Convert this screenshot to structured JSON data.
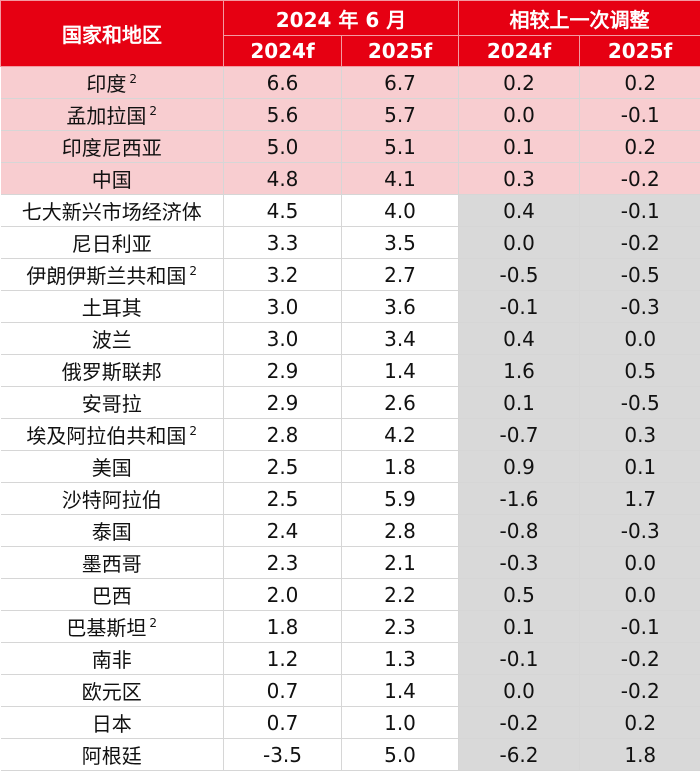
{
  "header": {
    "country_label": "国家和地区",
    "group_forecast": "2024 年 6 月",
    "group_revision": "相较上一次调整",
    "sub_2024": "2024f",
    "sub_2025": "2025f"
  },
  "rows": [
    {
      "name": "印度",
      "note": "2",
      "f2024": "6.6",
      "f2025": "6.7",
      "c2024": "0.2",
      "c2025": "0.2",
      "highlight": true
    },
    {
      "name": "孟加拉国",
      "note": "2",
      "f2024": "5.6",
      "f2025": "5.7",
      "c2024": "0.0",
      "c2025": "-0.1",
      "highlight": true
    },
    {
      "name": "印度尼西亚",
      "note": "",
      "f2024": "5.0",
      "f2025": "5.1",
      "c2024": "0.1",
      "c2025": "0.2",
      "highlight": true
    },
    {
      "name": "中国",
      "note": "",
      "f2024": "4.8",
      "f2025": "4.1",
      "c2024": "0.3",
      "c2025": "-0.2",
      "highlight": true
    },
    {
      "name": "七大新兴市场经济体",
      "note": "",
      "f2024": "4.5",
      "f2025": "4.0",
      "c2024": "0.4",
      "c2025": "-0.1",
      "highlight": false
    },
    {
      "name": "尼日利亚",
      "note": "",
      "f2024": "3.3",
      "f2025": "3.5",
      "c2024": "0.0",
      "c2025": "-0.2",
      "highlight": false
    },
    {
      "name": "伊朗伊斯兰共和国",
      "note": "2",
      "f2024": "3.2",
      "f2025": "2.7",
      "c2024": "-0.5",
      "c2025": "-0.5",
      "highlight": false
    },
    {
      "name": "土耳其",
      "note": "",
      "f2024": "3.0",
      "f2025": "3.6",
      "c2024": "-0.1",
      "c2025": "-0.3",
      "highlight": false
    },
    {
      "name": "波兰",
      "note": "",
      "f2024": "3.0",
      "f2025": "3.4",
      "c2024": "0.4",
      "c2025": "0.0",
      "highlight": false
    },
    {
      "name": "俄罗斯联邦",
      "note": "",
      "f2024": "2.9",
      "f2025": "1.4",
      "c2024": "1.6",
      "c2025": "0.5",
      "highlight": false
    },
    {
      "name": "安哥拉",
      "note": "",
      "f2024": "2.9",
      "f2025": "2.6",
      "c2024": "0.1",
      "c2025": "-0.5",
      "highlight": false
    },
    {
      "name": "埃及阿拉伯共和国",
      "note": "2",
      "f2024": "2.8",
      "f2025": "4.2",
      "c2024": "-0.7",
      "c2025": "0.3",
      "highlight": false
    },
    {
      "name": "美国",
      "note": "",
      "f2024": "2.5",
      "f2025": "1.8",
      "c2024": "0.9",
      "c2025": "0.1",
      "highlight": false
    },
    {
      "name": "沙特阿拉伯",
      "note": "",
      "f2024": "2.5",
      "f2025": "5.9",
      "c2024": "-1.6",
      "c2025": "1.7",
      "highlight": false
    },
    {
      "name": "泰国",
      "note": "",
      "f2024": "2.4",
      "f2025": "2.8",
      "c2024": "-0.8",
      "c2025": "-0.3",
      "highlight": false
    },
    {
      "name": "墨西哥",
      "note": "",
      "f2024": "2.3",
      "f2025": "2.1",
      "c2024": "-0.3",
      "c2025": "0.0",
      "highlight": false
    },
    {
      "name": "巴西",
      "note": "",
      "f2024": "2.0",
      "f2025": "2.2",
      "c2024": "0.5",
      "c2025": "0.0",
      "highlight": false
    },
    {
      "name": "巴基斯坦",
      "note": "2",
      "f2024": "1.8",
      "f2025": "2.3",
      "c2024": "0.1",
      "c2025": "-0.1",
      "highlight": false
    },
    {
      "name": "南非",
      "note": "",
      "f2024": "1.2",
      "f2025": "1.3",
      "c2024": "-0.1",
      "c2025": "-0.2",
      "highlight": false
    },
    {
      "name": "欧元区",
      "note": "",
      "f2024": "0.7",
      "f2025": "1.4",
      "c2024": "0.0",
      "c2025": "-0.2",
      "highlight": false
    },
    {
      "name": "日本",
      "note": "",
      "f2024": "0.7",
      "f2025": "1.0",
      "c2024": "-0.2",
      "c2025": "0.2",
      "highlight": false
    },
    {
      "name": "阿根廷",
      "note": "",
      "f2024": "-3.5",
      "f2025": "5.0",
      "c2024": "-6.2",
      "c2025": "1.8",
      "highlight": false
    }
  ]
}
